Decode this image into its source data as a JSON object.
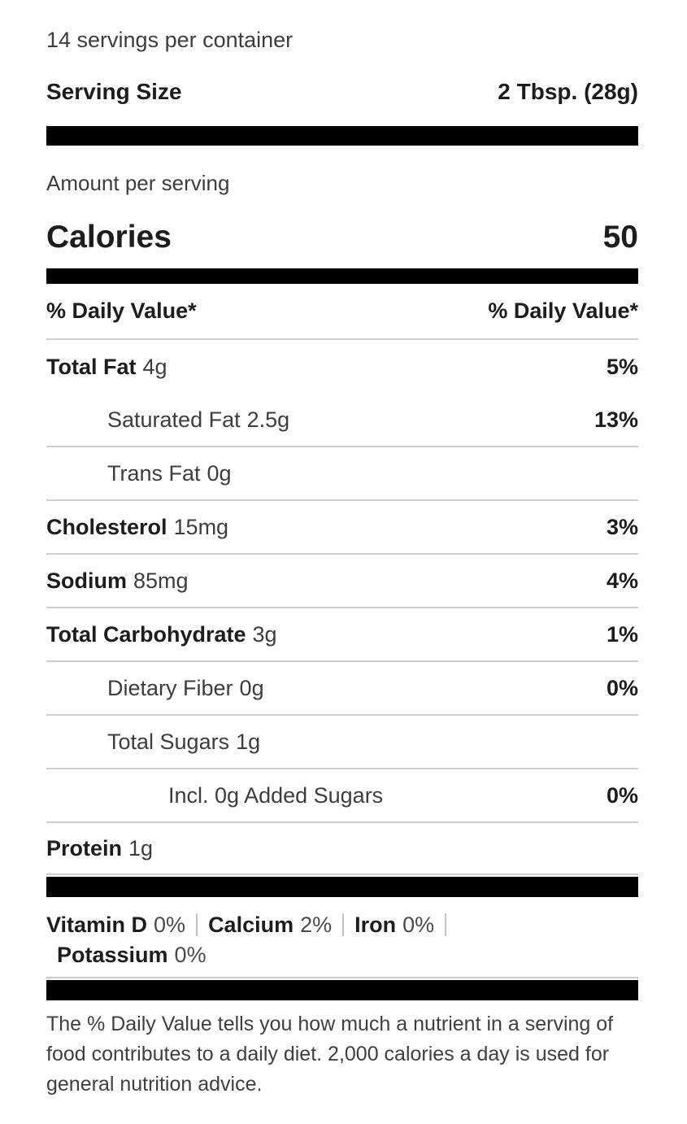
{
  "header": {
    "servings_per_container": "14 servings per container",
    "serving_size_label": "Serving Size",
    "serving_size_value": "2 Tbsp. (28g)",
    "amount_per_serving": "Amount per serving",
    "calories_label": "Calories",
    "calories_value": "50",
    "daily_value_left": "% Daily Value*",
    "daily_value_right": "% Daily Value*"
  },
  "rows": [
    {
      "name": "Total Fat",
      "amount": "4g",
      "dv": "5%"
    },
    {
      "name": "Saturated Fat",
      "amount": "2.5g",
      "dv": "13%"
    },
    {
      "name": "Trans Fat",
      "amount": "0g",
      "dv": ""
    },
    {
      "name": "Cholesterol",
      "amount": "15mg",
      "dv": "3%"
    },
    {
      "name": "Sodium",
      "amount": "85mg",
      "dv": "4%"
    },
    {
      "name": "Total Carbohydrate",
      "amount": "3g",
      "dv": "1%"
    },
    {
      "name": "Dietary Fiber",
      "amount": "0g",
      "dv": "0%"
    },
    {
      "name": "Total Sugars",
      "amount": "1g",
      "dv": ""
    },
    {
      "name": "Incl. 0g Added Sugars",
      "amount": "",
      "dv": "0%"
    },
    {
      "name": "Protein",
      "amount": "1g",
      "dv": ""
    }
  ],
  "vitamins": [
    {
      "name": "Vitamin D",
      "value": "0%"
    },
    {
      "name": "Calcium",
      "value": "2%"
    },
    {
      "name": "Iron",
      "value": "0%"
    },
    {
      "name": "Potassium",
      "value": "0%"
    }
  ],
  "footnote": "The % Daily Value tells you how much a nutrient in a serving of food contributes to a daily diet. 2,000 calories a day is used for general nutrition advice.",
  "colors": {
    "bar": "#000000",
    "divider": "#cdcdcd",
    "text_primary": "#1d1d1d",
    "text_secondary": "#3d3d3d"
  }
}
